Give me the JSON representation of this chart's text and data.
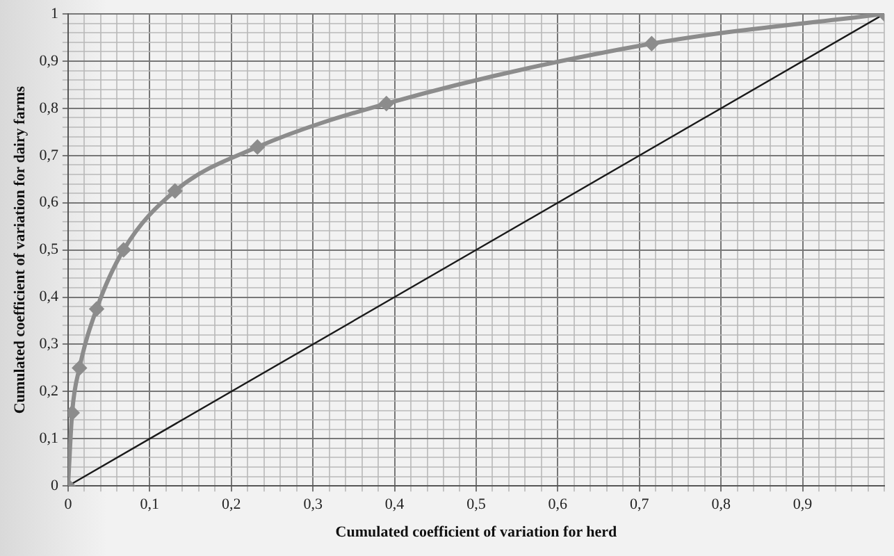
{
  "chart_data": {
    "type": "line",
    "xlabel": "Cumulated coefficient of variation for herd",
    "ylabel": "Cumulated coefficient of variation for dairy farms",
    "series": [
      {
        "color": "#8c8c8c",
        "marker": "diamond",
        "x": [
          0,
          0.005,
          0.014,
          0.035,
          0.068,
          0.131,
          0.232,
          0.39,
          0.715,
          1
        ],
        "values": [
          0,
          0.155,
          0.25,
          0.375,
          0.5,
          0.625,
          0.718,
          0.81,
          0.937,
          1
        ]
      },
      {
        "color": "#1a1a1a",
        "marker": "none",
        "x": [
          0,
          1
        ],
        "values": [
          0,
          1
        ]
      }
    ],
    "xlim": [
      0,
      1
    ],
    "ylim": [
      0,
      1
    ],
    "xticks": [
      0,
      {
        "value": 0.02,
        "label": null
      },
      {
        "value": 0.04,
        "label": null
      },
      {
        "value": 0.06,
        "label": null
      },
      {
        "value": 0.08,
        "label": null
      },
      {
        "value": 0.1,
        "label": "0,1"
      },
      {
        "value": 0.12,
        "label": null
      },
      {
        "value": 0.14,
        "label": null
      },
      {
        "value": 0.16,
        "label": null
      },
      {
        "value": 0.18,
        "label": null
      },
      {
        "value": 0.2,
        "label": "0,2"
      },
      {
        "value": 0.22,
        "label": null
      },
      {
        "value": 0.24,
        "label": null
      },
      {
        "value": 0.26,
        "label": null
      },
      {
        "value": 0.28,
        "label": null
      },
      {
        "value": 0.3,
        "label": "0,3"
      },
      {
        "value": 0.32,
        "label": null
      },
      {
        "value": 0.34,
        "label": null
      },
      {
        "value": 0.36,
        "label": null
      },
      {
        "value": 0.38,
        "label": null
      },
      {
        "value": 0.4,
        "label": "0,4"
      },
      {
        "value": 0.42,
        "label": null
      },
      {
        "value": 0.44,
        "label": null
      },
      {
        "value": 0.46,
        "label": null
      },
      {
        "value": 0.48,
        "label": null
      },
      {
        "value": 0.5,
        "label": "0,5"
      },
      {
        "value": 0.52,
        "label": null
      },
      {
        "value": 0.54,
        "label": null
      },
      {
        "value": 0.56,
        "label": null
      },
      {
        "value": 0.58,
        "label": null
      },
      {
        "value": 0.6,
        "label": "0,6"
      },
      {
        "value": 0.62,
        "label": null
      },
      {
        "value": 0.64,
        "label": null
      },
      {
        "value": 0.66,
        "label": null
      },
      {
        "value": 0.68,
        "label": null
      },
      {
        "value": 0.7,
        "label": "0,7"
      },
      {
        "value": 0.72,
        "label": null
      },
      {
        "value": 0.74,
        "label": null
      },
      {
        "value": 0.76,
        "label": null
      },
      {
        "value": 0.78,
        "label": null
      },
      {
        "value": 0.8,
        "label": "0,8"
      },
      {
        "value": 0.82,
        "label": null
      },
      {
        "value": 0.84,
        "label": null
      },
      {
        "value": 0.86,
        "label": null
      },
      {
        "value": 0.88,
        "label": null
      },
      {
        "value": 0.9,
        "label": "0,9"
      },
      {
        "value": 0.92,
        "label": null
      },
      {
        "value": 0.94,
        "label": null
      },
      {
        "value": 0.96,
        "label": null
      },
      {
        "value": 0.98,
        "label": null
      },
      {
        "value": 1,
        "label": null
      }
    ],
    "yticks": [
      0,
      {
        "value": 0.02,
        "label": null
      },
      {
        "value": 0.04,
        "label": null
      },
      {
        "value": 0.06,
        "label": null
      },
      {
        "value": 0.08,
        "label": null
      },
      {
        "value": 0.1,
        "label": "0,1"
      },
      {
        "value": 0.12,
        "label": null
      },
      {
        "value": 0.14,
        "label": null
      },
      {
        "value": 0.16,
        "label": null
      },
      {
        "value": 0.18,
        "label": null
      },
      {
        "value": 0.2,
        "label": "0,2"
      },
      {
        "value": 0.22,
        "label": null
      },
      {
        "value": 0.24,
        "label": null
      },
      {
        "value": 0.26,
        "label": null
      },
      {
        "value": 0.28,
        "label": null
      },
      {
        "value": 0.3,
        "label": "0,3"
      },
      {
        "value": 0.32,
        "label": null
      },
      {
        "value": 0.34,
        "label": null
      },
      {
        "value": 0.36,
        "label": null
      },
      {
        "value": 0.38,
        "label": null
      },
      {
        "value": 0.4,
        "label": "0,4"
      },
      {
        "value": 0.42,
        "label": null
      },
      {
        "value": 0.44,
        "label": null
      },
      {
        "value": 0.46,
        "label": null
      },
      {
        "value": 0.48,
        "label": null
      },
      {
        "value": 0.5,
        "label": "0,5"
      },
      {
        "value": 0.52,
        "label": null
      },
      {
        "value": 0.54,
        "label": null
      },
      {
        "value": 0.56,
        "label": null
      },
      {
        "value": 0.58,
        "label": null
      },
      {
        "value": 0.6,
        "label": "0,6"
      },
      {
        "value": 0.62,
        "label": null
      },
      {
        "value": 0.64,
        "label": null
      },
      {
        "value": 0.66,
        "label": null
      },
      {
        "value": 0.68,
        "label": null
      },
      {
        "value": 0.7,
        "label": "0,7"
      },
      {
        "value": 0.72,
        "label": null
      },
      {
        "value": 0.74,
        "label": null
      },
      {
        "value": 0.76,
        "label": null
      },
      {
        "value": 0.78,
        "label": null
      },
      {
        "value": 0.8,
        "label": "0,8"
      },
      {
        "value": 0.82,
        "label": null
      },
      {
        "value": 0.84,
        "label": null
      },
      {
        "value": 0.86,
        "label": null
      },
      {
        "value": 0.88,
        "label": null
      },
      {
        "value": 0.9,
        "label": "0,9"
      },
      {
        "value": 0.92,
        "label": null
      },
      {
        "value": 0.94,
        "label": null
      },
      {
        "value": 0.96,
        "label": null
      },
      {
        "value": 0.98,
        "label": null
      },
      1
    ],
    "grid": true,
    "legend": false
  }
}
